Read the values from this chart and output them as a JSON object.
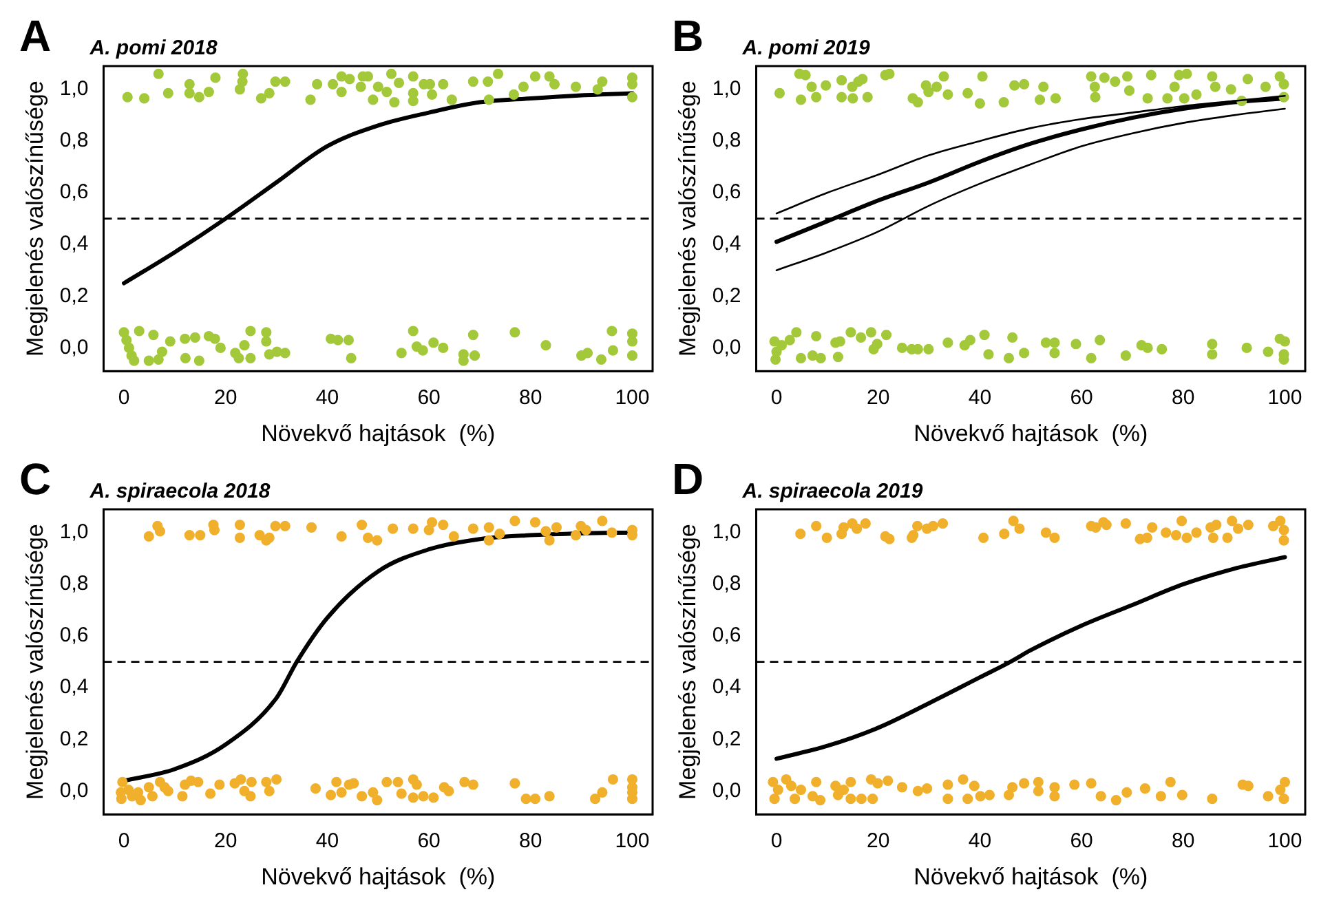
{
  "chart_data": [
    {
      "type": "scatter",
      "title": "A. pomi 2018",
      "annotations": [
        "A"
      ],
      "xlabel": "Növekvő hajtások  (%)",
      "ylabel": "Megjelenés valószínűsége",
      "xlim": [
        -4,
        104
      ],
      "ylim": [
        -0.09,
        1.09
      ],
      "xticks": [
        0,
        20,
        40,
        60,
        80,
        100
      ],
      "yticks": [
        {
          "value": 0,
          "label": "0,0"
        },
        {
          "value": 0.2,
          "label": "0,2"
        },
        {
          "value": 0.4,
          "label": "0,4"
        },
        {
          "value": 0.6,
          "label": "0,6"
        },
        {
          "value": 0.8,
          "label": "0,8"
        },
        {
          "value": 1,
          "label": "1,0"
        }
      ],
      "marker": "circle",
      "ref_lines": [
        {
          "axis": "y",
          "value": 0.5,
          "line_style": "dashed"
        }
      ],
      "series": [
        {
          "type": "scatter",
          "color": "#a3c93a",
          "x": [
            0.7,
            4,
            6.8,
            8.7,
            12.9,
            12.9,
            14.8,
            16.7,
            18,
            22.8,
            23.4,
            23.3,
            27,
            28.6,
            29.8,
            31.7,
            36.7,
            38,
            41.1,
            42.8,
            42.8,
            44.4,
            46.6,
            47,
            48,
            49,
            50,
            51.7,
            52.6,
            53.2,
            54.1,
            56.9,
            56.9,
            56.9,
            59,
            60.2,
            60.6,
            62.8,
            64.5,
            68.7,
            71.6,
            71.8,
            73.6,
            76.7,
            78.6,
            80.9,
            83.7,
            84.7,
            88.9,
            93.2,
            94.1,
            100,
            100,
            100,
            0,
            0.5,
            1,
            1.5,
            2,
            3,
            4.9,
            5.8,
            6.8,
            7.5,
            9.1,
            12,
            12.1,
            14,
            14.8,
            16.7,
            17.9,
            19,
            21.9,
            22.6,
            23.7,
            24.9,
            24.9,
            28,
            28,
            28.6,
            30.1,
            31.7,
            40.7,
            42.1,
            44.2,
            44.7,
            54.6,
            56.9,
            57.6,
            58.8,
            60.9,
            62.8,
            66.8,
            66.8,
            68.7,
            69,
            76.9,
            83,
            90,
            91.2,
            93.9,
            96,
            96.2,
            100,
            100,
            100
          ],
          "values": [
            0.97,
            0.965,
            1.06,
            0.985,
            1.02,
            0.985,
            0.97,
            0.99,
            1.045,
            1,
            1.06,
            1.03,
            0.965,
            0.985,
            1.03,
            1.03,
            0.96,
            1.02,
            1.02,
            1.05,
            0.99,
            1.04,
            1.01,
            1.05,
            1.05,
            0.96,
            1.01,
            0.99,
            1.06,
            0.95,
            1.025,
            1.05,
            0.985,
            0.955,
            1.02,
            1.02,
            0.98,
            1.02,
            0.96,
            1.03,
            1.03,
            0.96,
            1.06,
            0.98,
            1.01,
            1.05,
            1.05,
            1.02,
            1.01,
            1,
            1.03,
            1.045,
            1.02,
            0.97,
            0.06,
            0.03,
            0,
            -0.03,
            -0.05,
            0.065,
            -0.05,
            0.05,
            -0.045,
            -0.015,
            0.025,
            0.035,
            -0.04,
            0.04,
            -0.05,
            0.045,
            0.035,
            0,
            -0.02,
            -0.04,
            0.01,
            0.065,
            -0.04,
            0.06,
            0.025,
            -0.025,
            -0.015,
            -0.02,
            0.035,
            0.03,
            0.03,
            -0.04,
            -0.02,
            0.065,
            0.005,
            -0.01,
            0.02,
            0,
            -0.025,
            -0.05,
            0.05,
            -0.03,
            0.06,
            0.01,
            -0.03,
            -0.02,
            -0.045,
            0.065,
            -0.01,
            0.055,
            0.025,
            -0.03
          ]
        },
        {
          "type": "line",
          "marker": "none",
          "color": "#000000",
          "x": [
            0,
            10,
            20,
            30,
            40,
            50,
            60,
            70,
            80,
            90,
            100
          ],
          "values": [
            0.25,
            0.37,
            0.5,
            0.64,
            0.78,
            0.86,
            0.91,
            0.95,
            0.965,
            0.977,
            0.985
          ]
        }
      ]
    },
    {
      "type": "scatter",
      "title": "A. pomi 2019",
      "annotations": [
        "B"
      ],
      "xlabel": "Növekvő hajtások  (%)",
      "ylabel": "Megjelenés valószínűsége",
      "xlim": [
        -4,
        104
      ],
      "ylim": [
        -0.09,
        1.09
      ],
      "xticks": [
        0,
        20,
        40,
        60,
        80,
        100
      ],
      "yticks": [
        {
          "value": 0,
          "label": "0,0"
        },
        {
          "value": 0.2,
          "label": "0,2"
        },
        {
          "value": 0.4,
          "label": "0,4"
        },
        {
          "value": 0.6,
          "label": "0,6"
        },
        {
          "value": 0.8,
          "label": "0,8"
        },
        {
          "value": 1,
          "label": "1,0"
        }
      ],
      "marker": "circle",
      "ref_lines": [
        {
          "axis": "y",
          "value": 0.5,
          "line_style": "dashed"
        }
      ],
      "series": [
        {
          "type": "scatter",
          "color": "#a3c93a",
          "x": [
            0.6,
            4.5,
            4.8,
            5.7,
            6.9,
            7.8,
            9.7,
            12.8,
            12.8,
            14.9,
            15,
            16.1,
            16.9,
            17.9,
            21.4,
            22.2,
            26.8,
            27.8,
            29.4,
            29.9,
            31.5,
            32.9,
            33.7,
            37.6,
            40,
            40.5,
            44.7,
            46.8,
            48.7,
            51.8,
            52.5,
            54.9,
            61.9,
            62.6,
            62.7,
            64.5,
            66.6,
            69,
            69.4,
            73,
            73.7,
            76.9,
            78.3,
            79.2,
            80.7,
            80.2,
            82.6,
            85.7,
            86.3,
            89.4,
            91.5,
            92.7,
            96.2,
            99,
            99.8,
            99.8,
            -0.4,
            0,
            -0.2,
            1,
            2.6,
            3.9,
            4.8,
            7.1,
            7.8,
            8.7,
            11.6,
            12.1,
            12.5,
            14.6,
            16.6,
            18.6,
            19.1,
            19.8,
            21.6,
            24.7,
            26.6,
            27.8,
            29.9,
            33.7,
            37,
            38.1,
            40.9,
            41.7,
            45.7,
            46.4,
            48.7,
            53,
            54.7,
            54.7,
            58.9,
            61.9,
            63.6,
            68.7,
            71.8,
            73,
            75.8,
            85.7,
            85.7,
            92.5,
            96.7,
            99,
            100,
            99.8,
            99.8
          ],
          "values": [
            0.985,
            1.06,
            0.96,
            1.055,
            1.01,
            0.97,
            1.015,
            1.035,
            0.97,
            1.01,
            0.965,
            1.03,
            1.04,
            0.97,
            1.055,
            1.06,
            0.965,
            0.95,
            1.015,
            0.99,
            1.01,
            1.05,
            0.98,
            0.985,
            0.945,
            1.05,
            0.95,
            1.015,
            1.02,
            0.96,
            1.01,
            0.965,
            1.05,
            1.01,
            0.97,
            1.045,
            1.03,
            1.05,
            0.995,
            0.965,
            1.055,
            0.965,
            1.01,
            1.055,
            1.06,
            0.965,
            0.98,
            1.05,
            1.01,
            1,
            0.955,
            1.04,
            1.01,
            1.05,
            1.02,
            0.97,
            0.025,
            -0.015,
            -0.045,
            0.01,
            0.03,
            0.06,
            -0.04,
            -0.03,
            0.045,
            -0.04,
            0.02,
            -0.035,
            0.025,
            0.06,
            0.04,
            0.06,
            -0.005,
            0.015,
            0.05,
            0,
            -0.005,
            -0.005,
            -0.005,
            0.02,
            0.01,
            0.03,
            0.05,
            -0.025,
            -0.04,
            0.04,
            -0.02,
            0.02,
            0.02,
            -0.02,
            0.015,
            -0.04,
            0.03,
            -0.03,
            0.01,
            0,
            -0.005,
            0.015,
            -0.025,
            0,
            -0.015,
            0.035,
            0.025,
            -0.025,
            -0.045
          ]
        },
        {
          "type": "line",
          "marker": "none",
          "color": "#000000",
          "x": [
            0,
            10,
            20,
            30,
            40,
            50,
            60,
            70,
            80,
            90,
            100
          ],
          "values": [
            0.41,
            0.49,
            0.57,
            0.64,
            0.72,
            0.79,
            0.845,
            0.89,
            0.925,
            0.95,
            0.965
          ]
        },
        {
          "type": "line",
          "marker": "none",
          "color": "#000000",
          "x": [
            0,
            10,
            20,
            30,
            40,
            50,
            60,
            70,
            80,
            90,
            100
          ],
          "values": [
            0.52,
            0.6,
            0.67,
            0.745,
            0.8,
            0.85,
            0.885,
            0.91,
            0.935,
            0.955,
            0.975
          ]
        },
        {
          "type": "line",
          "marker": "none",
          "color": "#000000",
          "x": [
            0,
            10,
            20,
            30,
            40,
            50,
            60,
            70,
            80,
            90,
            100
          ],
          "values": [
            0.3,
            0.37,
            0.45,
            0.55,
            0.635,
            0.71,
            0.78,
            0.83,
            0.87,
            0.9,
            0.925
          ]
        }
      ]
    },
    {
      "type": "scatter",
      "title": "A. spiraecola 2018",
      "annotations": [
        "C"
      ],
      "xlabel": "Növekvő hajtások  (%)",
      "ylabel": "Megjelenés valószínűsége",
      "xlim": [
        -4,
        104
      ],
      "ylim": [
        -0.09,
        1.09
      ],
      "xticks": [
        0,
        20,
        40,
        60,
        80,
        100
      ],
      "yticks": [
        {
          "value": 0,
          "label": "0,0"
        },
        {
          "value": 0.2,
          "label": "0,2"
        },
        {
          "value": 0.4,
          "label": "0,4"
        },
        {
          "value": 0.6,
          "label": "0,6"
        },
        {
          "value": 0.8,
          "label": "0,8"
        },
        {
          "value": 1,
          "label": "1,0"
        }
      ],
      "marker": "circle",
      "ref_lines": [
        {
          "axis": "y",
          "value": 0.5,
          "line_style": "dashed"
        }
      ],
      "series": [
        {
          "type": "scatter",
          "color": "#f0b02c",
          "x": [
            4.9,
            6.6,
            7.1,
            12.9,
            15,
            17.6,
            17.8,
            22.8,
            22.8,
            26.7,
            28,
            28.6,
            29.8,
            31.7,
            36.9,
            42.8,
            46.8,
            48,
            49.8,
            52.9,
            56.9,
            60,
            60.6,
            62.8,
            64.9,
            68.7,
            71.8,
            71.8,
            73.9,
            76.9,
            80.9,
            83,
            83.7,
            85.1,
            88.9,
            89.9,
            90.9,
            94.1,
            96,
            100,
            100,
            -0.3,
            -0.6,
            -0.5,
            0.9,
            1.6,
            2.8,
            3.3,
            4.9,
            5.6,
            7.1,
            8,
            8.7,
            11.5,
            12,
            13.2,
            14.6,
            17,
            18.8,
            21.8,
            23,
            23.7,
            25.1,
            24.9,
            28,
            28.6,
            30,
            37.7,
            40.7,
            41.8,
            42.8,
            44.3,
            45.2,
            46.8,
            49,
            49.8,
            51.7,
            53.9,
            54.6,
            56.9,
            56.9,
            57.6,
            58.9,
            60.9,
            63,
            63.9,
            67,
            68.7,
            76.9,
            79.1,
            80.9,
            83.7,
            92.7,
            94.1,
            96.2,
            100,
            100,
            100,
            100
          ],
          "values": [
            0.985,
            1.025,
            1.005,
            0.99,
            0.99,
            1.03,
            1.01,
            1.03,
            0.98,
            0.99,
            0.97,
            0.98,
            1.025,
            1.025,
            1.02,
            0.985,
            1.03,
            0.98,
            0.97,
            1.015,
            1.015,
            1.01,
            1.04,
            1.03,
            0.985,
            1.015,
            1.02,
            0.97,
            0.995,
            1.045,
            1.04,
            1.005,
            0.97,
            1.02,
            0.99,
            1.025,
            1.01,
            1.045,
            1,
            1.01,
            0.99,
            0.035,
            -0.005,
            -0.03,
            0.005,
            -0.02,
            -0.005,
            -0.035,
            0.015,
            -0.02,
            0.035,
            0.015,
            0,
            -0.02,
            0.025,
            0.04,
            0.035,
            -0.01,
            0.025,
            0.03,
            0.045,
            0,
            0.035,
            -0.02,
            0.035,
            0,
            0.045,
            0.01,
            -0.015,
            0.035,
            -0.005,
            0.025,
            0.03,
            -0.02,
            -0.005,
            -0.035,
            0.035,
            0.035,
            -0.01,
            0.045,
            -0.025,
            0.025,
            -0.02,
            -0.025,
            0.015,
            0,
            0.035,
            0.025,
            0.03,
            -0.03,
            -0.03,
            -0.02,
            -0.03,
            -0.005,
            0.045,
            0.045,
            0.015,
            -0.005,
            -0.03
          ]
        },
        {
          "type": "line",
          "marker": "none",
          "color": "#000000",
          "x": [
            0,
            10,
            20,
            30,
            34,
            40,
            50,
            60,
            70,
            80,
            90,
            100
          ],
          "values": [
            0.04,
            0.085,
            0.18,
            0.36,
            0.5,
            0.67,
            0.85,
            0.935,
            0.975,
            0.99,
            0.997,
            1
          ]
        }
      ]
    },
    {
      "type": "scatter",
      "title": "A. spiraecola 2019",
      "annotations": [
        "D"
      ],
      "xlabel": "Növekvő hajtások  (%)",
      "ylabel": "Megjelenés valószínűsége",
      "xlim": [
        -4,
        104
      ],
      "ylim": [
        -0.09,
        1.09
      ],
      "xticks": [
        0,
        20,
        40,
        60,
        80,
        100
      ],
      "yticks": [
        {
          "value": 0,
          "label": "0,0"
        },
        {
          "value": 0.2,
          "label": "0,2"
        },
        {
          "value": 0.4,
          "label": "0,4"
        },
        {
          "value": 0.6,
          "label": "0,6"
        },
        {
          "value": 0.8,
          "label": "0,8"
        },
        {
          "value": 1,
          "label": "1,0"
        }
      ],
      "marker": "circle",
      "ref_lines": [
        {
          "axis": "y",
          "value": 0.5,
          "line_style": "dashed"
        }
      ],
      "series": [
        {
          "type": "scatter",
          "color": "#f0b02c",
          "x": [
            4.7,
            7.8,
            9.9,
            12.8,
            13.2,
            14.9,
            15.8,
            17.5,
            21.4,
            22.2,
            26.6,
            26.9,
            27.7,
            29.6,
            30.8,
            32.7,
            40.7,
            44.8,
            46.6,
            47.8,
            53,
            54.7,
            61.9,
            62.8,
            64.3,
            64.9,
            68.7,
            71.5,
            72.9,
            73.9,
            76.6,
            78.6,
            79.7,
            80.7,
            82.6,
            85.4,
            85.9,
            86.5,
            88.7,
            89.6,
            90.8,
            92.8,
            97.7,
            99.1,
            99.8,
            99.8,
            -0.7,
            -0.4,
            0.3,
            1.9,
            2.9,
            3.6,
            4.8,
            7.1,
            7.8,
            8.6,
            11.6,
            12.1,
            13.2,
            14.6,
            14.6,
            16.7,
            18.6,
            18.9,
            19.9,
            21.9,
            24.7,
            27.8,
            29.6,
            33.7,
            33.7,
            36.7,
            37.6,
            38.9,
            40.1,
            41.9,
            45.7,
            46.4,
            48.7,
            51.5,
            51.5,
            54.7,
            54.7,
            58.6,
            61.9,
            63.8,
            66.8,
            68.9,
            72.5,
            75.6,
            77.5,
            79.8,
            85.7,
            91.7,
            92.8,
            96.7,
            99.1,
            100,
            99.8
          ],
          "values": [
            0.995,
            1.025,
            0.98,
            0.995,
            1.02,
            1.035,
            1.015,
            1.035,
            0.985,
            0.975,
            0.98,
            0.99,
            1.025,
            1.015,
            1.025,
            1.035,
            0.98,
            0.995,
            1.045,
            1.015,
            1,
            0.98,
            1.025,
            1.02,
            1.04,
            1.03,
            1.035,
            0.975,
            0.98,
            1.02,
            1,
            0.99,
            1.045,
            0.98,
            1,
            1.02,
            0.98,
            1.03,
            0.98,
            1.045,
            1.015,
            1.03,
            1.025,
            1.045,
            1.01,
            0.97,
            0.035,
            -0.03,
            0.005,
            0.045,
            0.02,
            -0.03,
            0.005,
            -0.02,
            0.035,
            -0.035,
            0.02,
            -0.015,
            0.005,
            0.035,
            -0.03,
            -0.03,
            0.045,
            -0.03,
            0.03,
            0.04,
            0.015,
            0,
            0.01,
            0.025,
            -0.03,
            0.045,
            -0.03,
            0.02,
            -0.02,
            -0.015,
            -0.015,
            0.015,
            0.03,
            0.035,
            0,
            0.015,
            -0.02,
            0.025,
            0.03,
            -0.02,
            -0.035,
            -0.005,
            0.01,
            -0.02,
            0.035,
            -0.015,
            -0.03,
            0.025,
            0.02,
            -0.02,
            0.005,
            0.035,
            -0.03
          ]
        },
        {
          "type": "line",
          "marker": "none",
          "color": "#000000",
          "x": [
            0,
            10,
            20,
            30,
            40,
            46,
            50,
            60,
            70,
            80,
            90,
            100
          ],
          "values": [
            0.125,
            0.175,
            0.245,
            0.34,
            0.44,
            0.5,
            0.545,
            0.64,
            0.72,
            0.8,
            0.86,
            0.905
          ]
        }
      ]
    }
  ]
}
